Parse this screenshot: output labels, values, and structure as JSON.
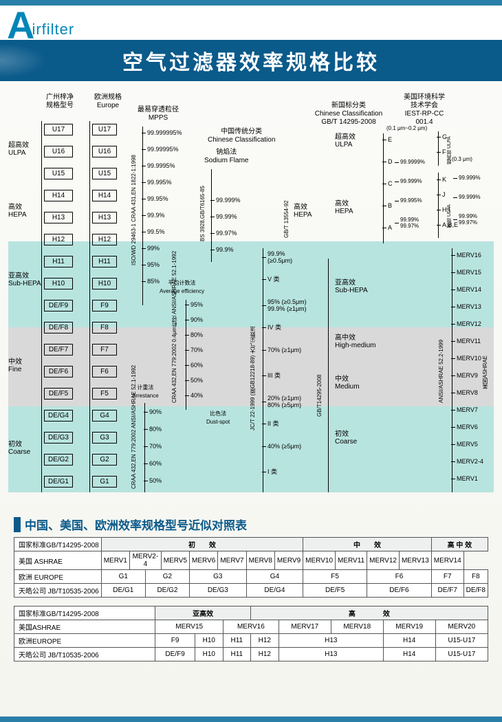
{
  "logo": {
    "big": "A",
    "rest": "irfilter"
  },
  "title": "空气过滤器效率规格比较",
  "columns": {
    "gz": {
      "h1": "广州梓净",
      "h2": "规格型号"
    },
    "eu": {
      "h1": "欧洲规格",
      "h2": "Europe"
    },
    "mpps": {
      "h1": "最易穿透粒径",
      "h2": "MPPS"
    },
    "cn_trad": {
      "h1": "中国传统分类",
      "h2": "Chinese Classification"
    },
    "sodium": {
      "h1": "钠焰法",
      "h2": "Sodium Flame"
    },
    "new_gb": {
      "h1": "新国标分类",
      "h2": "Chinese Classification",
      "h3": "GB/T 14295-2008"
    },
    "iest": {
      "h1": "美国环境科学",
      "h2": "技术学会",
      "h3": "IEST-RP-CC 001.4"
    },
    "range1": "(0.1 μm~0.2 μm)",
    "range2": "(0.3 μm)"
  },
  "sections": {
    "ulpa": {
      "cn": "超高效",
      "en": "ULPA"
    },
    "hepa": {
      "cn": "高效",
      "en": "HEPA"
    },
    "subhepa": {
      "cn": "亚高效",
      "en": "Sub-HEPA"
    },
    "fine": {
      "cn": "中效",
      "en": "Fine"
    },
    "coarse": {
      "cn": "初效",
      "en": "Coarse"
    }
  },
  "gz_rows": [
    "U17",
    "U16",
    "U15",
    "H14",
    "H13",
    "H12",
    "H11",
    "H10",
    "DE/F9",
    "DE/F8",
    "DE/F7",
    "DE/F6",
    "DE/F5",
    "DE/G4",
    "DE/G3",
    "DE/G2",
    "DE/G1"
  ],
  "eu_rows": [
    "U17",
    "U16",
    "U15",
    "H14",
    "H13",
    "H12",
    "H11",
    "H10",
    "F9",
    "F8",
    "F7",
    "F6",
    "F5",
    "G4",
    "G3",
    "G2",
    "G1"
  ],
  "mpps_ticks": [
    "99.999995%",
    "99.99995%",
    "99.9995%",
    "99.995%",
    "99.95%",
    "99.9%",
    "99.5%",
    "99%",
    "95%",
    "85%"
  ],
  "mpps_std": "ISO/WD 29463-1\nCRAA 431,EN 1822-1:1998",
  "avg_eff": {
    "h1": "平均计数法",
    "h2": "Average efficiency",
    "ticks": [
      "95%",
      "90%",
      "80%",
      "70%",
      "60%",
      "50%",
      "40%"
    ],
    "std": "CRAA 432,EN 779:2002\n0.4μm粒径\nANSI/ASHRAE 52.1-1992"
  },
  "arrestance": {
    "h1": "计重法",
    "h2": "Arrestance",
    "ticks": [
      "90%",
      "80%",
      "70%",
      "60%",
      "50%"
    ],
    "std": "CRAA 432,EN 779:2002\nANSI/ASHRAE 52.1-1992"
  },
  "sodium_ticks": [
    "99.999%",
    "99.99%",
    "99.97%",
    "99.9%"
  ],
  "sodium_std": "BS 3928,GB/T6165-85",
  "cn_classes": {
    "left": [
      "99.9%\n(≥0.5μm)",
      "V 类",
      "95% (≥0.5μm)\n99.9% (≥1μm)",
      "IV 类",
      "70% (≥1μm)",
      "III 类",
      "20% (≥1μm)\n80% (≥5μm)",
      "II 类",
      "40% (≥5μm)",
      "I 类"
    ],
    "left_label": "JC/T 22-1999 (原GB12218-89) 大气尘数法",
    "dustspot": {
      "h1": "比色法",
      "h2": "Dust-spot"
    }
  },
  "gb14295_col": {
    "std": "GB/T14295-2008",
    "gbt13554": "GB/T 13554-92",
    "labels": [
      {
        "cn": "超高效",
        "en": "ULPA"
      },
      {
        "cn": "高效",
        "en": "HEPA"
      },
      {
        "cn": "亚高效",
        "en": "Sub-HEPA"
      },
      {
        "cn": "高中效",
        "en": "High-medium"
      },
      {
        "cn": "中效",
        "en": "Medium"
      },
      {
        "cn": "初效",
        "en": "Coarse"
      }
    ]
  },
  "iest_grades": [
    "E",
    "D",
    "C",
    "B",
    "A"
  ],
  "iest_right1": [
    "G",
    "F"
  ],
  "iest_right1_cn": "超高效 ULPA",
  "iest_right2": [
    "K",
    "J",
    "H,I",
    "A,B,E"
  ],
  "iest_right2_cn": "高效 ULPA",
  "iest_pct_left": [
    "99.9999%",
    "99.999%",
    "99.995%",
    "99.99%\n99.97%"
  ],
  "iest_pct_right": [
    "99.999%",
    "99.999%",
    "99.99%\n99.97%"
  ],
  "merv": {
    "std": "ANSI/ASHRAE 52.2-1999",
    "cn": "美国ASHRAE",
    "ticks": [
      "MERV16",
      "MERV15",
      "MERV14",
      "MERV13",
      "MERV12",
      "MERV11",
      "MERV10",
      "MERV9",
      "MERV8",
      "MERV7",
      "MERV6",
      "MERV5",
      "MERV2-4",
      "MERV1"
    ]
  },
  "subheader": "中国、美国、欧洲效率规格型号近似对照表",
  "table1": {
    "colgroups": [
      "初　　效",
      "中　　效",
      "高 中 效"
    ],
    "rows": [
      {
        "head": "国家标准GB/T14295-2008",
        "cells": []
      },
      {
        "head": "美国 ASHRAE",
        "cells": [
          "MERV1",
          "MERV2-4",
          "MERV5",
          "MERV6",
          "MERV7",
          "MERV8",
          "MERV9",
          "MERV10",
          "MERV11",
          "MERV12",
          "MERV13",
          "MERV14"
        ]
      },
      {
        "head": "欧洲 EUROPE",
        "cells": [
          "G1",
          "G2",
          "G3",
          "G4",
          "F5",
          "F6",
          "F7",
          "F8"
        ]
      },
      {
        "head": "天皓公司 JB/T10535-2006",
        "cells": [
          "DE/G1",
          "DE/G2",
          "DE/G3",
          "DE/G4",
          "DE/F5",
          "DE/F6",
          "DE/F7",
          "DE/F8"
        ]
      }
    ]
  },
  "table2": {
    "colgroups": [
      "亚高效",
      "高　　　　效"
    ],
    "rows": [
      {
        "head": "国家标准GB/T14295-2008",
        "cells": []
      },
      {
        "head": "美国ASHRAE",
        "cells": [
          "MERV15",
          "MERV16",
          "MERV17",
          "MERV18",
          "MERV19",
          "MERV20"
        ]
      },
      {
        "head": "欧洲EUROPE",
        "cells": [
          "F9",
          "H10",
          "H11",
          "H12",
          "H13",
          "H14",
          "U15-U17"
        ]
      },
      {
        "head": "天皓公司 JB/T10535-2006",
        "cells": [
          "DE/F9",
          "H10",
          "H11",
          "H12",
          "H13",
          "H14",
          "U15-U17"
        ]
      }
    ]
  },
  "colors": {
    "brand": "#0186b8",
    "title_bg": "#0a5a8a",
    "teal": "#b8e4e0",
    "gray": "#d9d9d9"
  }
}
